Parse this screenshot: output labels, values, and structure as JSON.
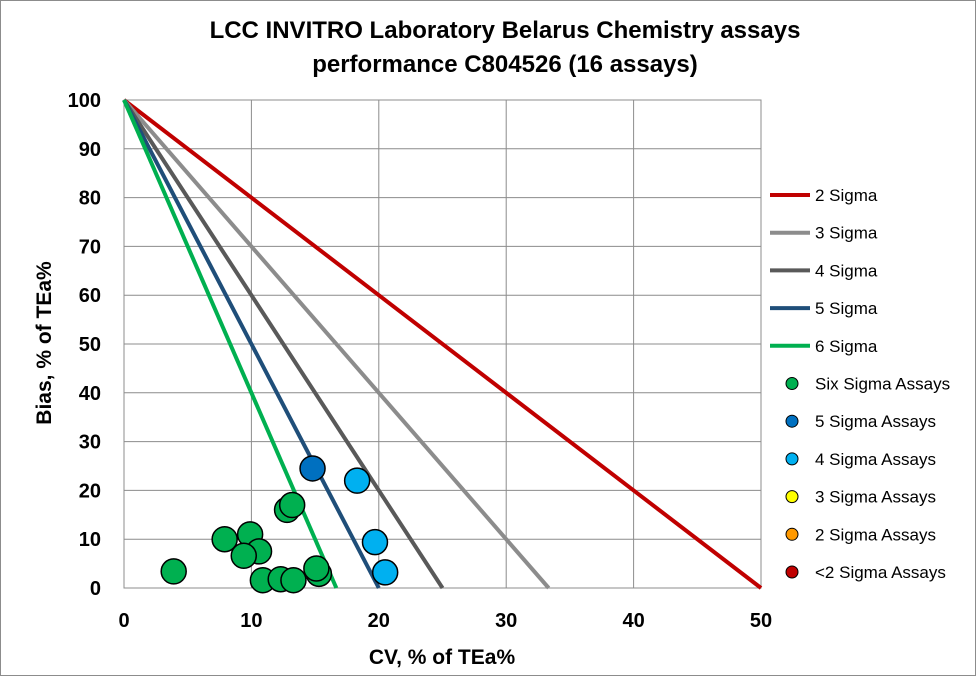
{
  "chart_data": {
    "type": "scatter",
    "title_line1": "LCC INVITRO Laboratory Belarus Chemistry assays",
    "title_line2": "performance C804526 (16 assays)",
    "xlabel": "CV, % of TEa%",
    "ylabel": "Bias, % of TEa%",
    "xlim": [
      0,
      50
    ],
    "ylim": [
      0,
      100
    ],
    "xticks": [
      0,
      10,
      20,
      30,
      40,
      50
    ],
    "yticks": [
      0,
      10,
      20,
      30,
      40,
      50,
      60,
      70,
      80,
      90,
      100
    ],
    "grid": true,
    "legend_position": "right",
    "sigma_lines": [
      {
        "name": "2 Sigma",
        "sigma": 2,
        "color": "#c00000"
      },
      {
        "name": "3 Sigma",
        "sigma": 3,
        "color": "#8c8c8c"
      },
      {
        "name": "4 Sigma",
        "sigma": 4,
        "color": "#595959"
      },
      {
        "name": "5 Sigma",
        "sigma": 5,
        "color": "#1f4e79"
      },
      {
        "name": "6 Sigma",
        "sigma": 6,
        "color": "#00b050"
      }
    ],
    "point_series": [
      {
        "name": "Six Sigma Assays",
        "color": "#00b050",
        "points": [
          [
            3.9,
            3.4
          ],
          [
            7.9,
            10.0
          ],
          [
            9.9,
            11.0
          ],
          [
            10.6,
            7.5
          ],
          [
            9.4,
            6.6
          ],
          [
            10.9,
            1.6
          ],
          [
            12.3,
            1.8
          ],
          [
            13.3,
            1.6
          ],
          [
            12.8,
            16.0
          ],
          [
            13.2,
            17.0
          ],
          [
            15.3,
            2.9
          ],
          [
            15.1,
            4.0
          ]
        ]
      },
      {
        "name": "5 Sigma Assays",
        "color": "#0070c0",
        "points": [
          [
            14.8,
            24.5
          ]
        ]
      },
      {
        "name": "4 Sigma Assays",
        "color": "#00b0f0",
        "points": [
          [
            18.3,
            22.0
          ],
          [
            19.7,
            9.4
          ],
          [
            20.5,
            3.2
          ]
        ]
      },
      {
        "name": "3 Sigma Assays",
        "color": "#ffff00",
        "points": []
      },
      {
        "name": "2 Sigma Assays",
        "color": "#ff9900",
        "points": []
      },
      {
        "name": "<2 Sigma Assays",
        "color": "#c00000",
        "points": []
      }
    ]
  }
}
